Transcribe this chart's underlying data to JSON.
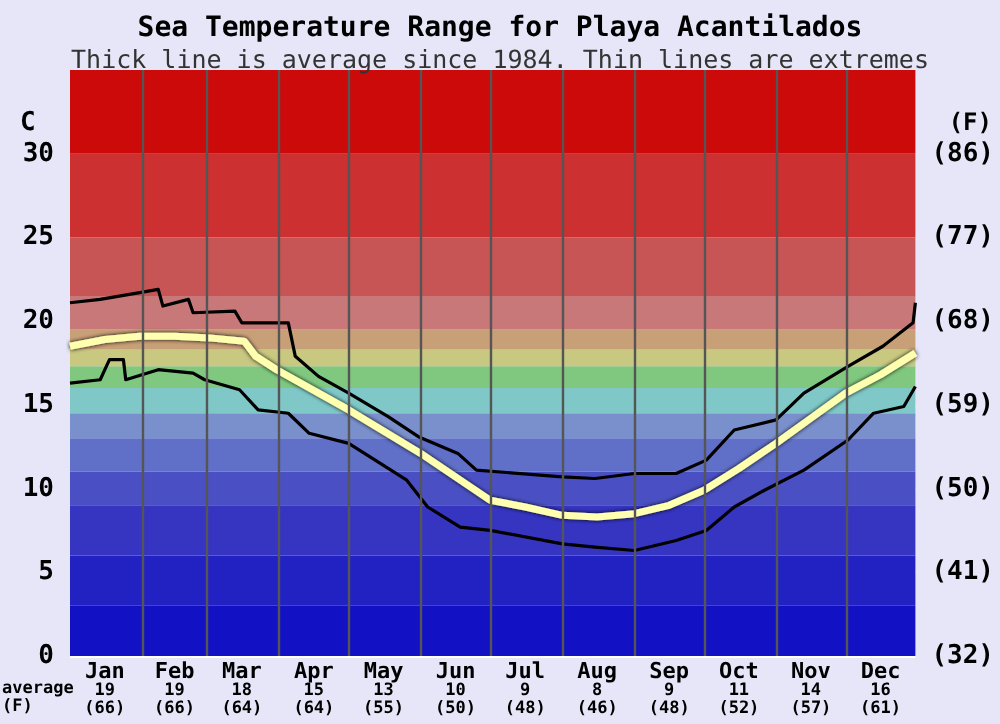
{
  "chart_data": {
    "type": "line",
    "title": "Sea Temperature Range for Playa Acantilados",
    "subtitle": "Thick line is average since 1984. Thin lines are extremes",
    "ylabel": "C",
    "y2label": "(F)",
    "annotations": [
      "average\n(F)"
    ],
    "xlim": [
      "--01-01",
      "--12-31"
    ],
    "xticks": [
      {
        "value": "--01-16",
        "label": "Jan\n19\n(66)"
      },
      {
        "value": "--02-15",
        "label": "Feb\n19\n(66)"
      },
      {
        "value": "--03-16",
        "label": "Mar\n18\n(64)"
      },
      {
        "value": "--04-16",
        "label": "Apr\n15\n(64)"
      },
      {
        "value": "--05-16",
        "label": "May\n13\n(55)"
      },
      {
        "value": "--06-16",
        "label": "Jun\n10\n(50)"
      },
      {
        "value": "--07-16",
        "label": "Jul\n9\n(48)"
      },
      {
        "value": "--08-16",
        "label": "Aug\n8\n(46)"
      },
      {
        "value": "--09-16",
        "label": "Sep\n9\n(48)"
      },
      {
        "value": "--10-16",
        "label": "Oct\n11\n(52)"
      },
      {
        "value": "--11-16",
        "label": "Nov\n14\n(57)"
      },
      {
        "value": "--12-16",
        "label": "Dec\n16\n(61)"
      }
    ],
    "ylim": [
      0,
      35
    ],
    "yticks": [
      0,
      5,
      10,
      15,
      20,
      25,
      30
    ],
    "y2lim": [
      32,
      95
    ],
    "y2ticks": [
      {
        "value": 32,
        "label": "(32)"
      },
      {
        "value": 41,
        "label": "(41)"
      },
      {
        "value": 50,
        "label": "(50)"
      },
      {
        "value": 59,
        "label": "(59)"
      },
      {
        "value": 68,
        "label": "(68)"
      },
      {
        "value": 77,
        "label": "(77)"
      },
      {
        "value": 86,
        "label": "(86)"
      }
    ],
    "grid": "y",
    "marker": "none",
    "series": [
      {
        "color": "#000000",
        "x": [
          "--01-01",
          "--01-14",
          "--01-31",
          "--02-08",
          "--02-10",
          "--02-21",
          "--02-23",
          "--03-13",
          "--03-16",
          "--04-05",
          "--04-08",
          "--04-18",
          "--05-01",
          "--05-18",
          "--05-31",
          "--06-17",
          "--06-25",
          "--08-01",
          "--08-15",
          "--09-01",
          "--09-19",
          "--10-02",
          "--10-14",
          "--11-01",
          "--11-13",
          "--12-02",
          "--12-17",
          "--12-30",
          "--12-31"
        ],
        "values": [
          21.1,
          21.3,
          21.7,
          21.9,
          20.9,
          21.3,
          20.5,
          20.6,
          19.9,
          19.9,
          17.9,
          16.7,
          15.7,
          14.3,
          13.1,
          12.1,
          11.1,
          10.7,
          10.6,
          10.9,
          10.9,
          11.7,
          13.5,
          14.1,
          15.7,
          17.3,
          18.5,
          19.9,
          21.1
        ]
      },
      {
        "color": "#000000",
        "x": [
          "--01-01",
          "--01-14",
          "--01-18",
          "--01-24",
          "--01-25",
          "--02-08",
          "--02-23",
          "--02-28",
          "--03-15",
          "--03-23",
          "--04-05",
          "--04-14",
          "--05-01",
          "--05-26",
          "--06-04",
          "--06-18",
          "--07-01",
          "--08-01",
          "--08-15",
          "--09-01",
          "--09-19",
          "--10-02",
          "--10-14",
          "--10-27",
          "--11-13",
          "--12-02",
          "--12-13",
          "--12-26",
          "--12-31"
        ],
        "values": [
          16.3,
          16.5,
          17.7,
          17.7,
          16.5,
          17.1,
          16.9,
          16.5,
          15.9,
          14.7,
          14.5,
          13.3,
          12.7,
          10.5,
          8.9,
          7.7,
          7.5,
          6.7,
          6.5,
          6.3,
          6.9,
          7.5,
          8.9,
          9.9,
          11.1,
          12.9,
          14.5,
          14.9,
          16.1
        ]
      },
      {
        "color": "#ffffb0",
        "x": [
          "--01-01",
          "--01-16",
          "--01-31",
          "--02-15",
          "--03-02",
          "--03-17",
          "--03-22",
          "--03-31",
          "--05-01",
          "--06-01",
          "--07-01",
          "--07-16",
          "--08-01",
          "--08-16",
          "--09-01",
          "--09-16",
          "--10-01",
          "--10-16",
          "--11-01",
          "--11-16",
          "--12-01",
          "--12-16",
          "--12-31"
        ],
        "values": [
          18.5,
          18.9,
          19.1,
          19.1,
          19.0,
          18.8,
          17.9,
          17.1,
          14.7,
          12.1,
          9.3,
          8.9,
          8.4,
          8.3,
          8.5,
          9.0,
          9.9,
          11.2,
          12.7,
          14.2,
          15.7,
          16.8,
          18.1
        ]
      }
    ],
    "ref_lines": [
      {
        "axis": "x",
        "value": "--02-01",
        "color": "#555555"
      },
      {
        "axis": "x",
        "value": "--03-01",
        "color": "#555555"
      },
      {
        "axis": "x",
        "value": "--04-01",
        "color": "#555555"
      },
      {
        "axis": "x",
        "value": "--05-01",
        "color": "#555555"
      },
      {
        "axis": "x",
        "value": "--06-01",
        "color": "#555555"
      },
      {
        "axis": "x",
        "value": "--07-01",
        "color": "#555555"
      },
      {
        "axis": "x",
        "value": "--08-01",
        "color": "#555555"
      },
      {
        "axis": "x",
        "value": "--09-01",
        "color": "#555555"
      },
      {
        "axis": "x",
        "value": "--10-01",
        "color": "#555555"
      },
      {
        "axis": "x",
        "value": "--11-01",
        "color": "#555555"
      },
      {
        "axis": "x",
        "value": "--12-01",
        "color": "#555555"
      }
    ],
    "bands": [
      {
        "axis": "y",
        "from": 0,
        "to": 3,
        "color": "#1212c4"
      },
      {
        "axis": "y",
        "from": 3,
        "to": 6,
        "color": "#2222c2"
      },
      {
        "axis": "y",
        "from": 6,
        "to": 9,
        "color": "#3535c2"
      },
      {
        "axis": "y",
        "from": 9,
        "to": 11,
        "color": "#4a50c4"
      },
      {
        "axis": "y",
        "from": 11,
        "to": 13,
        "color": "#6070c8"
      },
      {
        "axis": "y",
        "from": 13,
        "to": 14.5,
        "color": "#7a90cc"
      },
      {
        "axis": "y",
        "from": 14.5,
        "to": 16,
        "color": "#80c8c8"
      },
      {
        "axis": "y",
        "from": 16,
        "to": 17.3,
        "color": "#80c880"
      },
      {
        "axis": "y",
        "from": 17.3,
        "to": 18.3,
        "color": "#c8c880"
      },
      {
        "axis": "y",
        "from": 18.3,
        "to": 19.5,
        "color": "#c8a078"
      },
      {
        "axis": "y",
        "from": 19.5,
        "to": 21.5,
        "color": "#c87878"
      },
      {
        "axis": "y",
        "from": 21.5,
        "to": 25,
        "color": "#c85555"
      },
      {
        "axis": "y",
        "from": 25,
        "to": 30,
        "color": "#cc3030"
      },
      {
        "axis": "y",
        "from": 30,
        "to": 35,
        "color": "#cc0a0a"
      }
    ]
  }
}
